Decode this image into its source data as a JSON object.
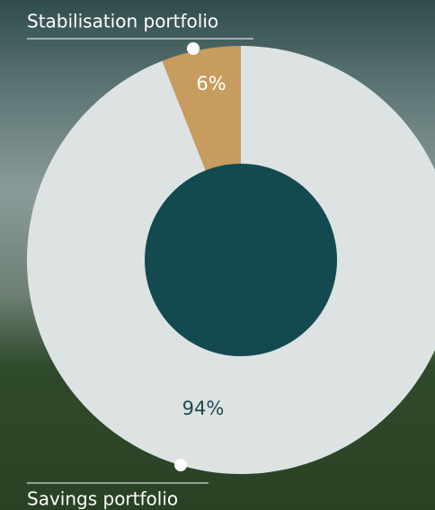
{
  "chart_data": {
    "type": "pie",
    "categories": [
      "Stabilisation portfolio",
      "Savings portfolio"
    ],
    "values": [
      6,
      94
    ],
    "value_labels": [
      "6%",
      "94%"
    ],
    "colors": [
      "#c79c5e",
      "#dde3e3"
    ],
    "label_colors": [
      "#ffffff",
      "#1d4a50"
    ],
    "hole_color": "#134a4f"
  }
}
